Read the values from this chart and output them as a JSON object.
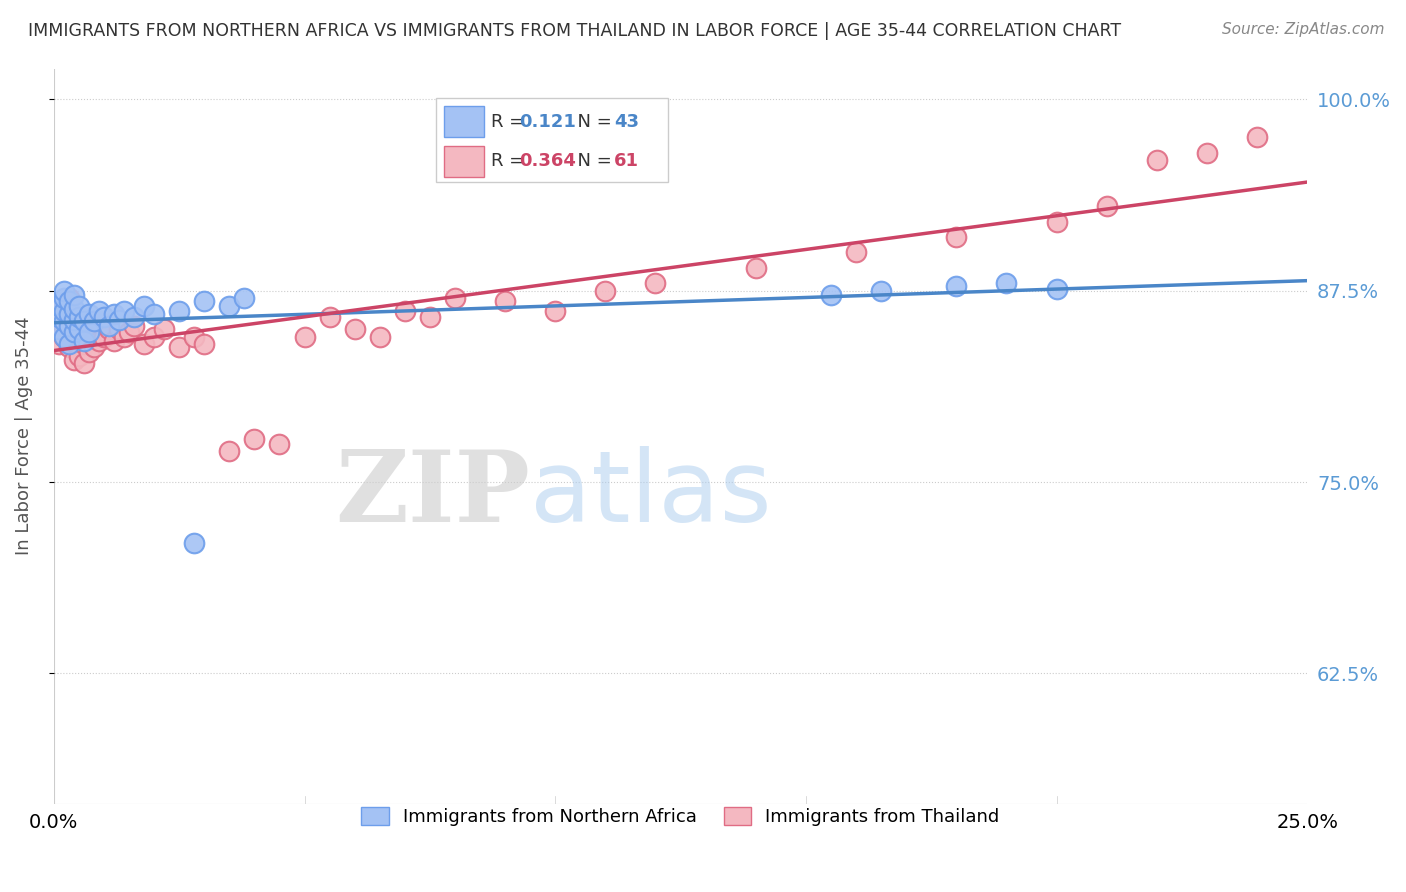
{
  "title": "IMMIGRANTS FROM NORTHERN AFRICA VS IMMIGRANTS FROM THAILAND IN LABOR FORCE | AGE 35-44 CORRELATION CHART",
  "source": "Source: ZipAtlas.com",
  "ylabel": "In Labor Force | Age 35-44",
  "xlim": [
    0.0,
    0.25
  ],
  "ylim": [
    0.54,
    1.02
  ],
  "yticks": [
    0.625,
    0.75,
    0.875,
    1.0
  ],
  "yticklabels": [
    "62.5%",
    "75.0%",
    "87.5%",
    "100.0%"
  ],
  "blue_R": 0.121,
  "blue_N": 43,
  "pink_R": 0.364,
  "pink_N": 61,
  "blue_color": "#a4c2f4",
  "pink_color": "#f4b8c1",
  "blue_edge_color": "#6d9eeb",
  "pink_edge_color": "#e06c84",
  "blue_line_color": "#4a86c8",
  "pink_line_color": "#cc4466",
  "blue_label": "Immigrants from Northern Africa",
  "pink_label": "Immigrants from Thailand",
  "watermark_zip": "ZIP",
  "watermark_atlas": "atlas",
  "blue_scatter_x": [
    0.001,
    0.001,
    0.001,
    0.002,
    0.002,
    0.002,
    0.002,
    0.002,
    0.003,
    0.003,
    0.003,
    0.003,
    0.004,
    0.004,
    0.004,
    0.004,
    0.005,
    0.005,
    0.005,
    0.006,
    0.006,
    0.007,
    0.007,
    0.008,
    0.009,
    0.01,
    0.011,
    0.012,
    0.013,
    0.014,
    0.016,
    0.018,
    0.02,
    0.025,
    0.028,
    0.03,
    0.035,
    0.038,
    0.155,
    0.165,
    0.18,
    0.19,
    0.2
  ],
  "blue_scatter_y": [
    0.85,
    0.858,
    0.865,
    0.845,
    0.855,
    0.862,
    0.87,
    0.875,
    0.84,
    0.852,
    0.86,
    0.868,
    0.848,
    0.856,
    0.863,
    0.872,
    0.85,
    0.858,
    0.865,
    0.842,
    0.855,
    0.848,
    0.86,
    0.855,
    0.862,
    0.858,
    0.852,
    0.86,
    0.856,
    0.862,
    0.858,
    0.865,
    0.86,
    0.862,
    0.71,
    0.868,
    0.865,
    0.87,
    0.872,
    0.875,
    0.878,
    0.88,
    0.876
  ],
  "pink_scatter_x": [
    0.001,
    0.001,
    0.001,
    0.002,
    0.002,
    0.002,
    0.003,
    0.003,
    0.003,
    0.003,
    0.004,
    0.004,
    0.004,
    0.004,
    0.005,
    0.005,
    0.005,
    0.006,
    0.006,
    0.006,
    0.007,
    0.007,
    0.008,
    0.008,
    0.009,
    0.009,
    0.01,
    0.011,
    0.012,
    0.013,
    0.014,
    0.015,
    0.016,
    0.018,
    0.02,
    0.022,
    0.025,
    0.028,
    0.03,
    0.035,
    0.04,
    0.045,
    0.05,
    0.055,
    0.06,
    0.065,
    0.07,
    0.075,
    0.08,
    0.09,
    0.1,
    0.11,
    0.12,
    0.14,
    0.16,
    0.18,
    0.2,
    0.21,
    0.22,
    0.23,
    0.24
  ],
  "pink_scatter_y": [
    0.858,
    0.865,
    0.84,
    0.852,
    0.86,
    0.845,
    0.838,
    0.848,
    0.856,
    0.87,
    0.83,
    0.842,
    0.85,
    0.862,
    0.832,
    0.845,
    0.855,
    0.828,
    0.84,
    0.855,
    0.835,
    0.848,
    0.838,
    0.85,
    0.842,
    0.855,
    0.845,
    0.85,
    0.842,
    0.85,
    0.845,
    0.848,
    0.852,
    0.84,
    0.845,
    0.85,
    0.838,
    0.845,
    0.84,
    0.77,
    0.778,
    0.775,
    0.845,
    0.858,
    0.85,
    0.845,
    0.862,
    0.858,
    0.87,
    0.868,
    0.862,
    0.875,
    0.88,
    0.89,
    0.9,
    0.91,
    0.92,
    0.93,
    0.96,
    0.965,
    0.975
  ]
}
